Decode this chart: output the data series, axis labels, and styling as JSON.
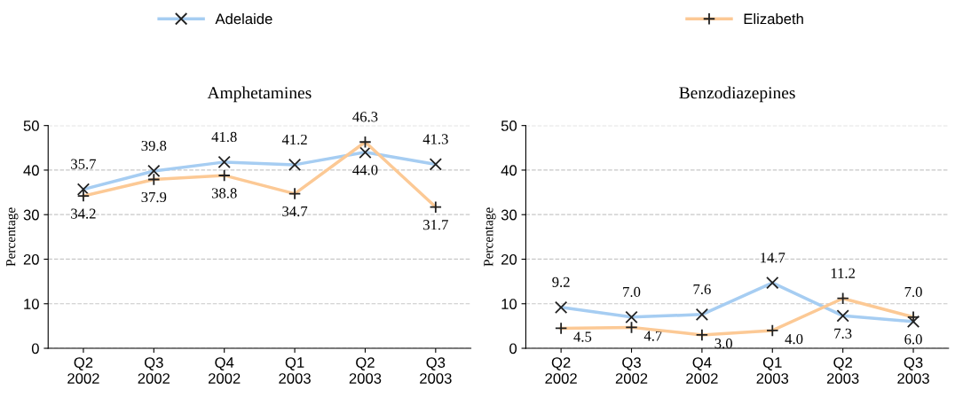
{
  "chart_data": [
    {
      "type": "line",
      "title": "Amphetamines",
      "ylabel": "Percentage",
      "categories": [
        "Q2\n2002",
        "Q3\n2002",
        "Q4\n2002",
        "Q1\n2003",
        "Q2\n2003",
        "Q3\n2003"
      ],
      "ylim": [
        0,
        50
      ],
      "yticks": [
        0,
        10,
        20,
        30,
        40,
        50
      ],
      "grid": "y",
      "legend": "top",
      "series": [
        {
          "name": "Adelaide",
          "color": "#a6cdf2",
          "marker": "cross",
          "values": [
            35.7,
            39.8,
            41.8,
            41.2,
            44.0,
            41.3
          ],
          "value_labels": [
            "35.7",
            "39.8",
            "41.8",
            "41.2",
            "44.0",
            "41.3"
          ]
        },
        {
          "name": "Elizabeth",
          "color": "#fcc995",
          "marker": "plus",
          "values": [
            34.2,
            37.9,
            38.8,
            34.7,
            46.3,
            31.7
          ],
          "value_labels": [
            "34.2",
            "37.9",
            "38.8",
            "34.7",
            "46.3",
            "31.7"
          ]
        }
      ]
    },
    {
      "type": "line",
      "title": "Benzodiazepines",
      "ylabel": "Percentage",
      "categories": [
        "Q2\n2002",
        "Q3\n2002",
        "Q4\n2002",
        "Q1\n2003",
        "Q2\n2003",
        "Q3\n2003"
      ],
      "ylim": [
        0,
        50
      ],
      "yticks": [
        0,
        10,
        20,
        30,
        40,
        50
      ],
      "grid": "y",
      "series": [
        {
          "name": "Adelaide",
          "color": "#a6cdf2",
          "marker": "cross",
          "values": [
            9.2,
            7.0,
            7.6,
            14.7,
            7.3,
            6.0
          ],
          "value_labels": [
            "9.2",
            "7.0",
            "7.6",
            "14.7",
            "7.3",
            "6.0"
          ]
        },
        {
          "name": "Elizabeth",
          "color": "#fcc995",
          "marker": "plus",
          "values": [
            4.5,
            4.7,
            3.0,
            4.0,
            11.2,
            7.0
          ],
          "value_labels": [
            "4.5",
            "4.7",
            "3.0",
            "4.0",
            "11.2",
            "7.0"
          ]
        }
      ]
    }
  ]
}
